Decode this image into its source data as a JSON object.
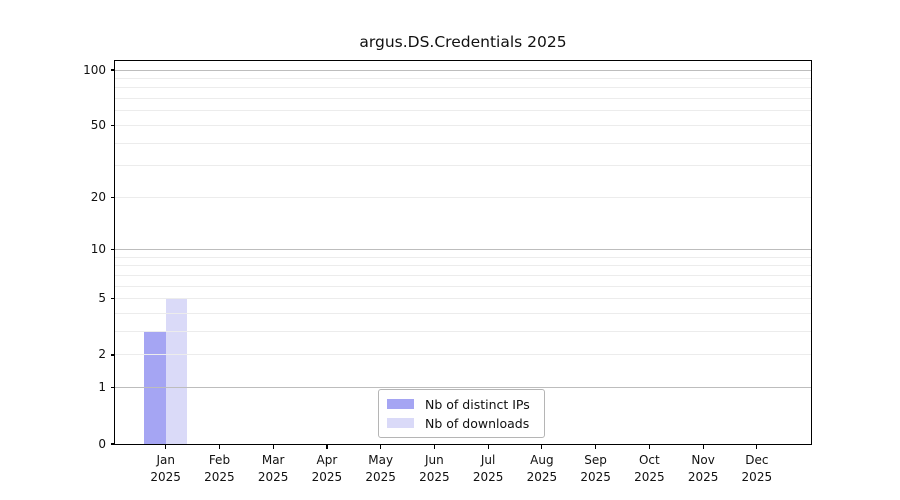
{
  "chart_data": {
    "type": "bar",
    "title": "argus.DS.Credentials 2025",
    "categories": [
      "Jan",
      "Feb",
      "Mar",
      "Apr",
      "May",
      "Jun",
      "Jul",
      "Aug",
      "Sep",
      "Oct",
      "Nov",
      "Dec"
    ],
    "category_year": "2025",
    "series": [
      {
        "name": "Nb of distinct IPs",
        "color": "#a5a5f3",
        "values": [
          3,
          0,
          0,
          0,
          0,
          0,
          0,
          0,
          0,
          0,
          0,
          0
        ]
      },
      {
        "name": "Nb of downloads",
        "color": "#dadaf8",
        "values": [
          5,
          0,
          0,
          0,
          0,
          0,
          0,
          0,
          0,
          0,
          0,
          0
        ]
      }
    ],
    "xlabel": "",
    "ylabel": "",
    "y_scale": "log1p",
    "y_ticks": [
      100,
      50,
      20,
      10,
      5,
      2,
      1,
      0
    ],
    "y_major_gridlines": [
      1,
      10,
      100
    ],
    "y_minor_gridlines": [
      2,
      3,
      4,
      5,
      6,
      7,
      8,
      9,
      20,
      30,
      40,
      50,
      60,
      70,
      80,
      90
    ],
    "ylim": [
      0,
      112
    ],
    "grid": "horizontal-only",
    "legend": {
      "position": "lower center",
      "entries": [
        "Nb of distinct IPs",
        "Nb of downloads"
      ]
    }
  },
  "colors": {
    "spine": "#000000",
    "text": "#111111",
    "grid_major": "#bdbdbd",
    "grid_minor": "#ececec",
    "legend_border": "#b5b5b5"
  }
}
